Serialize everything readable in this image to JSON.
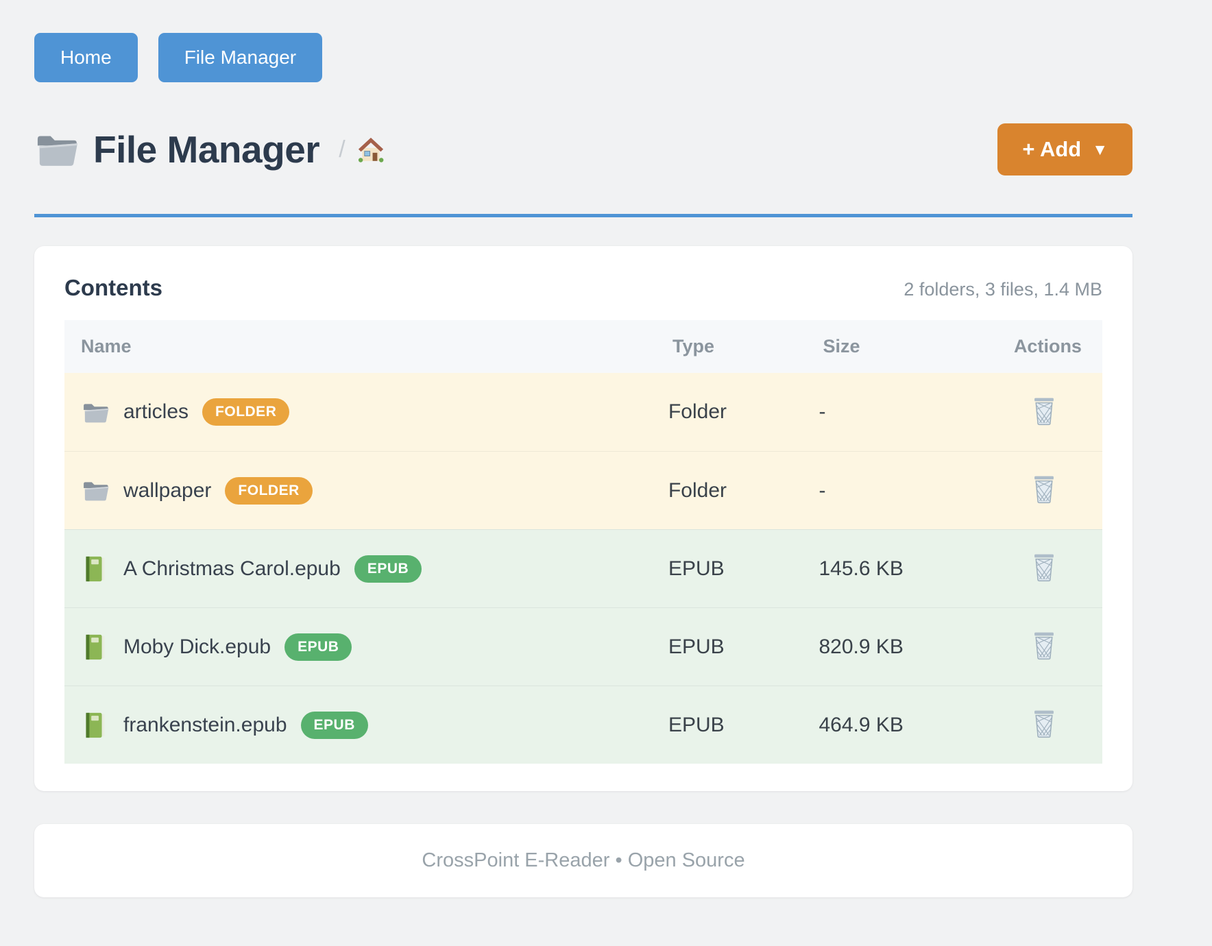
{
  "nav": {
    "buttons": [
      {
        "label": "Home"
      },
      {
        "label": "File Manager"
      }
    ]
  },
  "header": {
    "title": "File Manager",
    "title_icon": "folder-icon",
    "breadcrumb_separator": "/",
    "breadcrumb_home_icon": "house-icon",
    "add_button": {
      "label": "+ Add",
      "caret": "▼"
    }
  },
  "contents": {
    "heading": "Contents",
    "summary": "2 folders, 3 files, 1.4 MB",
    "table": {
      "columns": [
        "Name",
        "Type",
        "Size",
        "Actions"
      ],
      "rows": [
        {
          "name": "articles",
          "kind": "folder",
          "icon": "folder-icon",
          "badge": "FOLDER",
          "type": "Folder",
          "size": "-",
          "action_icon": "trash-icon"
        },
        {
          "name": "wallpaper",
          "kind": "folder",
          "icon": "folder-icon",
          "badge": "FOLDER",
          "type": "Folder",
          "size": "-",
          "action_icon": "trash-icon"
        },
        {
          "name": "A Christmas Carol.epub",
          "kind": "epub",
          "icon": "book-icon",
          "badge": "EPUB",
          "type": "EPUB",
          "size": "145.6 KB",
          "action_icon": "trash-icon"
        },
        {
          "name": "Moby Dick.epub",
          "kind": "epub",
          "icon": "book-icon",
          "badge": "EPUB",
          "type": "EPUB",
          "size": "820.9 KB",
          "action_icon": "trash-icon"
        },
        {
          "name": "frankenstein.epub",
          "kind": "epub",
          "icon": "book-icon",
          "badge": "EPUB",
          "type": "EPUB",
          "size": "464.9 KB",
          "action_icon": "trash-icon"
        }
      ]
    }
  },
  "footer": {
    "text": "CrossPoint E-Reader • Open Source"
  },
  "colors": {
    "accent_blue": "#4f94d5",
    "accent_orange": "#d9842e",
    "badge_folder": "#eaa43d",
    "badge_epub": "#58b16e",
    "row_folder_bg": "#fdf6e2",
    "row_epub_bg": "#e9f3ea",
    "head_row_bg": "#f6f8fa",
    "title_color": "#2d3b4d",
    "muted_color": "#8a949d",
    "text_color": "#39424e"
  }
}
